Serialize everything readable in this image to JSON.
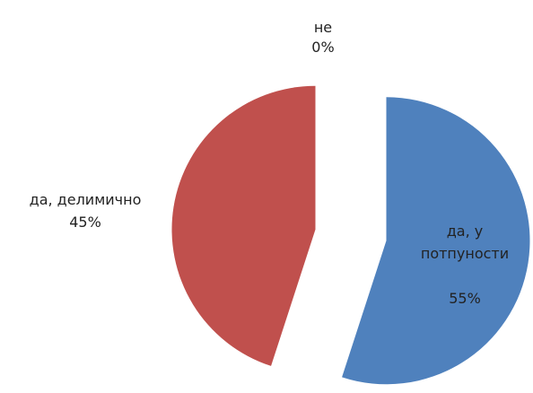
{
  "chart_data": {
    "type": "pie",
    "categories": [
      "да, у потпуности",
      "да, делимично",
      "не"
    ],
    "values": [
      55,
      45,
      0
    ],
    "value_labels": [
      "55%",
      "45%",
      "0%"
    ],
    "colors": [
      "#4f81bd",
      "#c0504d",
      "#9bbb59"
    ]
  }
}
